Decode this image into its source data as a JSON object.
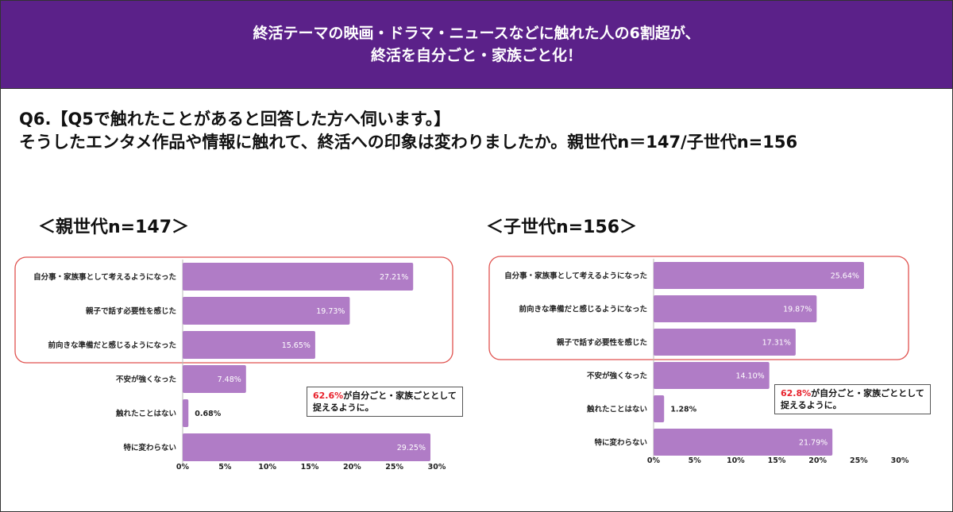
{
  "header": {
    "line1": "終活テーマの映画・ドラマ・ニュースなどに触れた人の6割超が、",
    "line2": "終活を自分ごと・家族ごと化！"
  },
  "question": {
    "line1": "Q6.【Q5で触れたことがあると回答した方へ伺います。】",
    "line2": "そうしたエンタメ作品や情報に触れて、終活への印象は変わりましたか。親世代n＝147/子世代n=156"
  },
  "colors": {
    "bar": "#b07cc6",
    "highlight_box": "#e0524f",
    "header_bg": "#5b2189"
  },
  "notes": [
    {
      "highlight": "62.6%",
      "line1_rest": "が自分ごと・家族ごととして",
      "line2": "捉えるように。"
    },
    {
      "highlight": "62.8%",
      "line1_rest": "が自分ごと・家族ごととして",
      "line2": "捉えるように。"
    }
  ],
  "chart_data": [
    {
      "type": "bar",
      "orientation": "horizontal",
      "title": "＜親世代n=147＞",
      "categories": [
        "自分事・家族事として考えるようになった",
        "親子で話す必要性を感じた",
        "前向きな準備だと感じるようになった",
        "不安が強くなった",
        "触れたことはない",
        "特に変わらない"
      ],
      "values": [
        27.21,
        19.73,
        15.65,
        7.48,
        0.68,
        29.25
      ],
      "value_labels": [
        "27.21%",
        "19.73%",
        "15.65%",
        "7.48%",
        "0.68%",
        "29.25%"
      ],
      "xlim": [
        0,
        30
      ],
      "xticks": [
        "0%",
        "5%",
        "10%",
        "15%",
        "20%",
        "25%",
        "30%"
      ],
      "highlighted_categories": 3,
      "grid": false
    },
    {
      "type": "bar",
      "orientation": "horizontal",
      "title": "＜子世代n=156＞",
      "categories": [
        "自分事・家族事として考えるようになった",
        "前向きな準備だと感じるようになった",
        "親子で話す必要性を感じた",
        "不安が強くなった",
        "触れたことはない",
        "特に変わらない"
      ],
      "values": [
        25.64,
        19.87,
        17.31,
        14.1,
        1.28,
        21.79
      ],
      "value_labels": [
        "25.64%",
        "19.87%",
        "17.31%",
        "14.10%",
        "1.28%",
        "21.79%"
      ],
      "xlim": [
        0,
        30
      ],
      "xticks": [
        "0%",
        "5%",
        "10%",
        "15%",
        "20%",
        "25%",
        "30%"
      ],
      "highlighted_categories": 3,
      "grid": false
    }
  ]
}
